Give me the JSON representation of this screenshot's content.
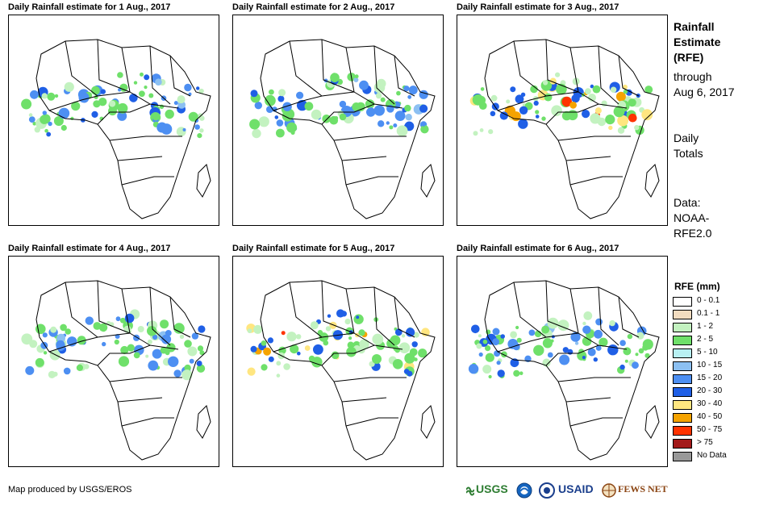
{
  "panels": [
    {
      "title": "Daily Rainfall estimate for 1 Aug., 2017",
      "rain_level": "moderate"
    },
    {
      "title": "Daily Rainfall estimate for 2 Aug., 2017",
      "rain_level": "moderate"
    },
    {
      "title": "Daily Rainfall estimate for 3 Aug., 2017",
      "rain_level": "heavy"
    },
    {
      "title": "Daily Rainfall estimate for 4 Aug., 2017",
      "rain_level": "moderate"
    },
    {
      "title": "Daily Rainfall estimate for 5 Aug., 2017",
      "rain_level": "heavy"
    },
    {
      "title": "Daily Rainfall estimate for 6 Aug., 2017",
      "rain_level": "moderate"
    }
  ],
  "side": {
    "title_line1": "Rainfall",
    "title_line2": "Estimate",
    "title_line3": "(RFE)",
    "through_label": "through",
    "through_date": "Aug 6, 2017",
    "totals_line1": "Daily",
    "totals_line2": "Totals",
    "data_line1": "Data:",
    "data_line2": "NOAA-",
    "data_line3": "RFE2.0"
  },
  "legend": {
    "title": "RFE (mm)",
    "items": [
      {
        "label": "0 - 0.1",
        "color": "#ffffff"
      },
      {
        "label": "0.1 - 1",
        "color": "#f2dcc0"
      },
      {
        "label": "1 - 2",
        "color": "#c3f2c0"
      },
      {
        "label": "2 - 5",
        "color": "#6fe06a"
      },
      {
        "label": "5 - 10",
        "color": "#b8f0f2"
      },
      {
        "label": "10 - 15",
        "color": "#8cc0f2"
      },
      {
        "label": "15 - 20",
        "color": "#4d8ff2"
      },
      {
        "label": "20 - 30",
        "color": "#1f5fe6"
      },
      {
        "label": "30 - 40",
        "color": "#ffe680"
      },
      {
        "label": "40 - 50",
        "color": "#f5a300"
      },
      {
        "label": "50 - 75",
        "color": "#ff3300"
      },
      {
        "label": "> 75",
        "color": "#a31a1a"
      },
      {
        "label": "No Data",
        "color": "#999999"
      }
    ]
  },
  "footer": {
    "credit": "Map produced by USGS/EROS"
  },
  "logos": {
    "usgs": "USGS",
    "usaid": "USAID",
    "fewsnet": "FEWS NET"
  }
}
